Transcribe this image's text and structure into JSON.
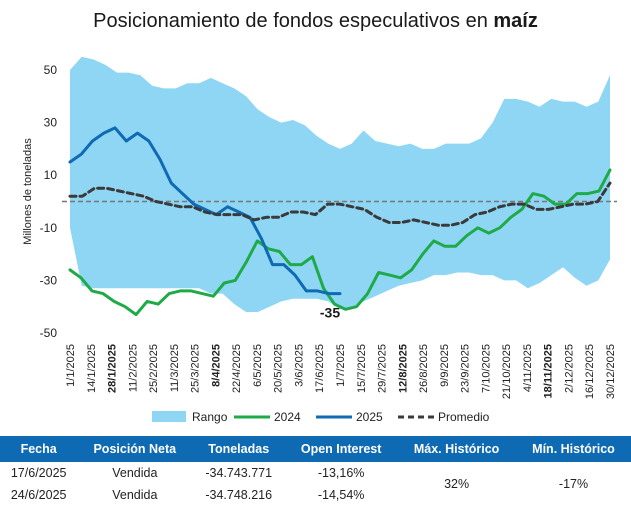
{
  "title_main": "Posicionamiento de fondos especulativos en",
  "title_bold": "maíz",
  "annotation": "-35",
  "colors": {
    "range": "#8fd6f5",
    "y2024": "#1faa48",
    "y2025": "#0f6ab4",
    "avg": "#3a3a3a",
    "header": "#0f6ab4"
  },
  "chart_data": {
    "type": "line",
    "title": "Posicionamiento de fondos especulativos en maíz",
    "ylabel": "Millones de toneladas",
    "ylim": [
      -50,
      50
    ],
    "yticks": [
      50,
      30,
      10,
      -10,
      -30,
      -50
    ],
    "x_tick_labels": [
      "1/1/2025",
      "14/1/2025",
      "28/1/2025",
      "11/2/2025",
      "25/2/2025",
      "11/3/2025",
      "25/3/2025",
      "8/4/2025",
      "22/4/2025",
      "6/5/2025",
      "20/5/2025",
      "3/6/2025",
      "17/6/2025",
      "1/7/2025",
      "15/7/2025",
      "29/7/2025",
      "12/8/2025",
      "26/8/2025",
      "9/9/2025",
      "23/9/2025",
      "7/10/2025",
      "21/10/2025",
      "4/11/2025",
      "18/11/2025",
      "2/12/2025",
      "16/12/2025",
      "30/12/2025"
    ],
    "reference_line": 0,
    "legend": [
      "Rango",
      "2024",
      "2025",
      "Promedio"
    ],
    "legend_position": "bottom",
    "range_upper": [
      50,
      55,
      54,
      52,
      49,
      49,
      48,
      44,
      43,
      43,
      45,
      45,
      47,
      45,
      43,
      40,
      35,
      32,
      30,
      31,
      29,
      25,
      22,
      20,
      22,
      27,
      23,
      22,
      21,
      22,
      20,
      20,
      22,
      22,
      22,
      24,
      30,
      39,
      39,
      38,
      36,
      39,
      38,
      38,
      36,
      38,
      48
    ],
    "range_lower": [
      -10,
      -32,
      -33,
      -33,
      -33,
      -33,
      -33,
      -33,
      -33,
      -33,
      -33,
      -33,
      -35,
      -35,
      -39,
      -42,
      -42,
      -40,
      -38,
      -37,
      -37,
      -37,
      -38,
      -41,
      -41,
      -38,
      -36,
      -34,
      -32,
      -31,
      -30,
      -28,
      -28,
      -27,
      -27,
      -28,
      -28,
      -30,
      -30,
      -33,
      -31,
      -28,
      -25,
      -29,
      -32,
      -30,
      -22
    ],
    "series": [
      {
        "name": "2024",
        "values": [
          -26,
          -29,
          -34,
          -35,
          -38,
          -40,
          -43,
          -38,
          -39,
          -35,
          -34,
          -34,
          -35,
          -36,
          -31,
          -30,
          -23,
          -15,
          -18,
          -19,
          -24,
          -24,
          -21,
          -33,
          -39,
          -41,
          -40,
          -35,
          -27,
          -28,
          -29,
          -26,
          -20,
          -15,
          -17,
          -17,
          -13,
          -10,
          -12,
          -10,
          -6,
          -3,
          3,
          2,
          -1,
          -1,
          3,
          3,
          4,
          12
        ]
      },
      {
        "name": "2025",
        "values": [
          15,
          18,
          23,
          26,
          28,
          23,
          26,
          23,
          16,
          7,
          3,
          -1,
          -3,
          -5,
          -2,
          -4,
          -6,
          -14,
          -24,
          -24,
          -28,
          -34,
          -34,
          -35,
          -35
        ]
      },
      {
        "name": "Promedio",
        "values": [
          2,
          2,
          5,
          5,
          4,
          3,
          2,
          0,
          -1,
          -2,
          -2,
          -4,
          -5,
          -5,
          -5,
          -7,
          -6,
          -6,
          -4,
          -4,
          -5,
          -1,
          -1,
          -2,
          -3,
          -6,
          -8,
          -8,
          -7,
          -8,
          -9,
          -9,
          -8,
          -5,
          -4,
          -2,
          -1,
          -1,
          -3,
          -3,
          -2,
          -1,
          -1,
          0,
          7
        ]
      }
    ]
  },
  "table": {
    "headers": [
      "Fecha",
      "Posición Neta",
      "Toneladas",
      "Open Interest",
      "Máx. Histórico",
      "Mín. Histórico"
    ],
    "rows": [
      [
        "17/6/2025",
        "Vendida",
        "-34.743.771",
        "-13,16%"
      ],
      [
        "24/6/2025",
        "Vendida",
        "-34.748.216",
        "-14,54%"
      ]
    ],
    "max_historico": "32%",
    "min_historico": "-17%"
  }
}
